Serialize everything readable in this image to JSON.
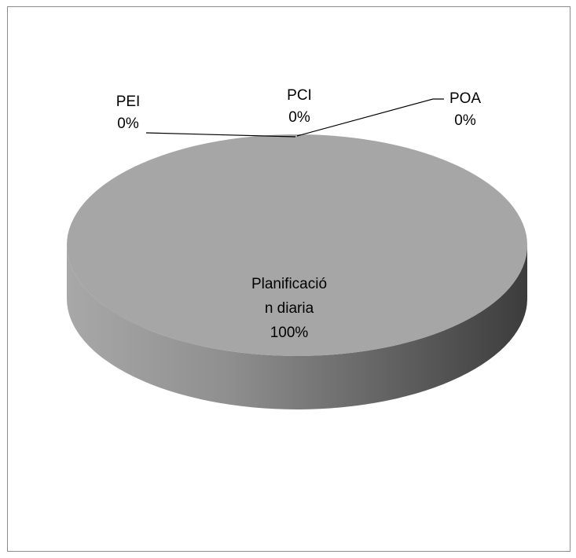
{
  "chart_data": {
    "type": "pie",
    "style": "3d",
    "title": "",
    "slices": [
      {
        "category": "PEI",
        "value": 0,
        "label_lines": [
          "PEI",
          "0%"
        ]
      },
      {
        "category": "PCI",
        "value": 0,
        "label_lines": [
          "PCI",
          "0%"
        ]
      },
      {
        "category": "POA",
        "value": 0,
        "label_lines": [
          "POA",
          "0%"
        ]
      },
      {
        "category": "Planificación diaria",
        "value": 100,
        "label_lines": [
          "Planificació",
          "n diaria",
          "100%"
        ]
      }
    ],
    "legend": "none",
    "colors": {
      "top": "#a6a6a6",
      "side_light": "#9a9a9a",
      "side_dark": "#3f3f3f",
      "leader": "#000000",
      "frame_border": "#8c8c8c"
    }
  }
}
